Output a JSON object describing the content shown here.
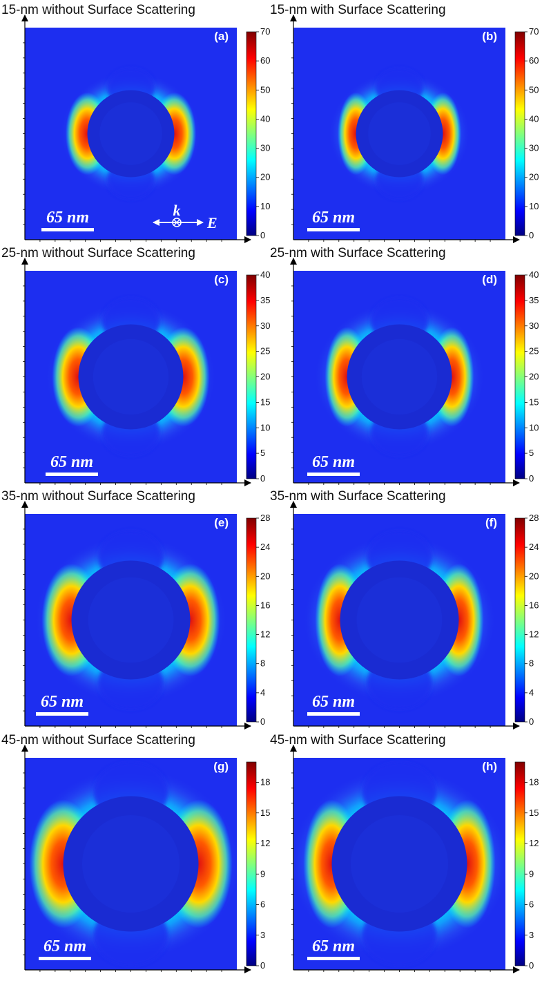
{
  "chart_data": [
    {
      "type": "heatmap",
      "panel": "(a)",
      "title": "15-nm without Surface Scattering",
      "diameter_nm": 15,
      "surface_scattering": false,
      "colorbar": {
        "ticks": [
          "0",
          "10",
          "20",
          "30",
          "40",
          "50",
          "60",
          "70"
        ],
        "range": [
          0,
          70
        ]
      },
      "scale_bar": "65 nm",
      "polarization": {
        "k": "k",
        "E": "E"
      }
    },
    {
      "type": "heatmap",
      "panel": "(b)",
      "title": "15-nm with Surface Scattering",
      "diameter_nm": 15,
      "surface_scattering": true,
      "colorbar": {
        "ticks": [
          "0",
          "10",
          "20",
          "30",
          "40",
          "50",
          "60",
          "70"
        ],
        "range": [
          0,
          70
        ]
      },
      "scale_bar": "65 nm"
    },
    {
      "type": "heatmap",
      "panel": "(c)",
      "title": "25-nm without Surface Scattering",
      "diameter_nm": 25,
      "surface_scattering": false,
      "colorbar": {
        "ticks": [
          "0",
          "5",
          "10",
          "15",
          "20",
          "25",
          "30",
          "35",
          "40"
        ],
        "range": [
          0,
          40
        ]
      },
      "scale_bar": "65 nm"
    },
    {
      "type": "heatmap",
      "panel": "(d)",
      "title": "25-nm with Surface Scattering",
      "diameter_nm": 25,
      "surface_scattering": true,
      "colorbar": {
        "ticks": [
          "0",
          "5",
          "10",
          "15",
          "20",
          "25",
          "30",
          "35",
          "40"
        ],
        "range": [
          0,
          40
        ]
      },
      "scale_bar": "65 nm"
    },
    {
      "type": "heatmap",
      "panel": "(e)",
      "title": "35-nm without Surface Scattering",
      "diameter_nm": 35,
      "surface_scattering": false,
      "colorbar": {
        "ticks": [
          "0",
          "4",
          "8",
          "12",
          "16",
          "20",
          "24",
          "28"
        ],
        "range": [
          0,
          28
        ]
      },
      "scale_bar": "65 nm"
    },
    {
      "type": "heatmap",
      "panel": "(f)",
      "title": "35-nm with Surface Scattering",
      "diameter_nm": 35,
      "surface_scattering": true,
      "colorbar": {
        "ticks": [
          "0",
          "4",
          "8",
          "12",
          "16",
          "20",
          "24",
          "28"
        ],
        "range": [
          0,
          28
        ]
      },
      "scale_bar": "65 nm"
    },
    {
      "type": "heatmap",
      "panel": "(g)",
      "title": "45-nm without Surface Scattering",
      "diameter_nm": 45,
      "surface_scattering": false,
      "colorbar": {
        "ticks": [
          "0",
          "3",
          "6",
          "9",
          "12",
          "15",
          "18"
        ],
        "range": [
          0,
          20
        ]
      },
      "scale_bar": "65 nm"
    },
    {
      "type": "heatmap",
      "panel": "(h)",
      "title": "45-nm with Surface Scattering",
      "diameter_nm": 45,
      "surface_scattering": true,
      "colorbar": {
        "ticks": [
          "0",
          "3",
          "6",
          "9",
          "12",
          "15",
          "18"
        ],
        "range": [
          0,
          20
        ]
      },
      "scale_bar": "65 nm"
    }
  ],
  "colors": {
    "background": "#1d2ef0",
    "inner": "#1a2bd2",
    "colormap": [
      "#000080",
      "#0000ff",
      "#00ffff",
      "#ffff00",
      "#ff0000",
      "#800000"
    ]
  }
}
